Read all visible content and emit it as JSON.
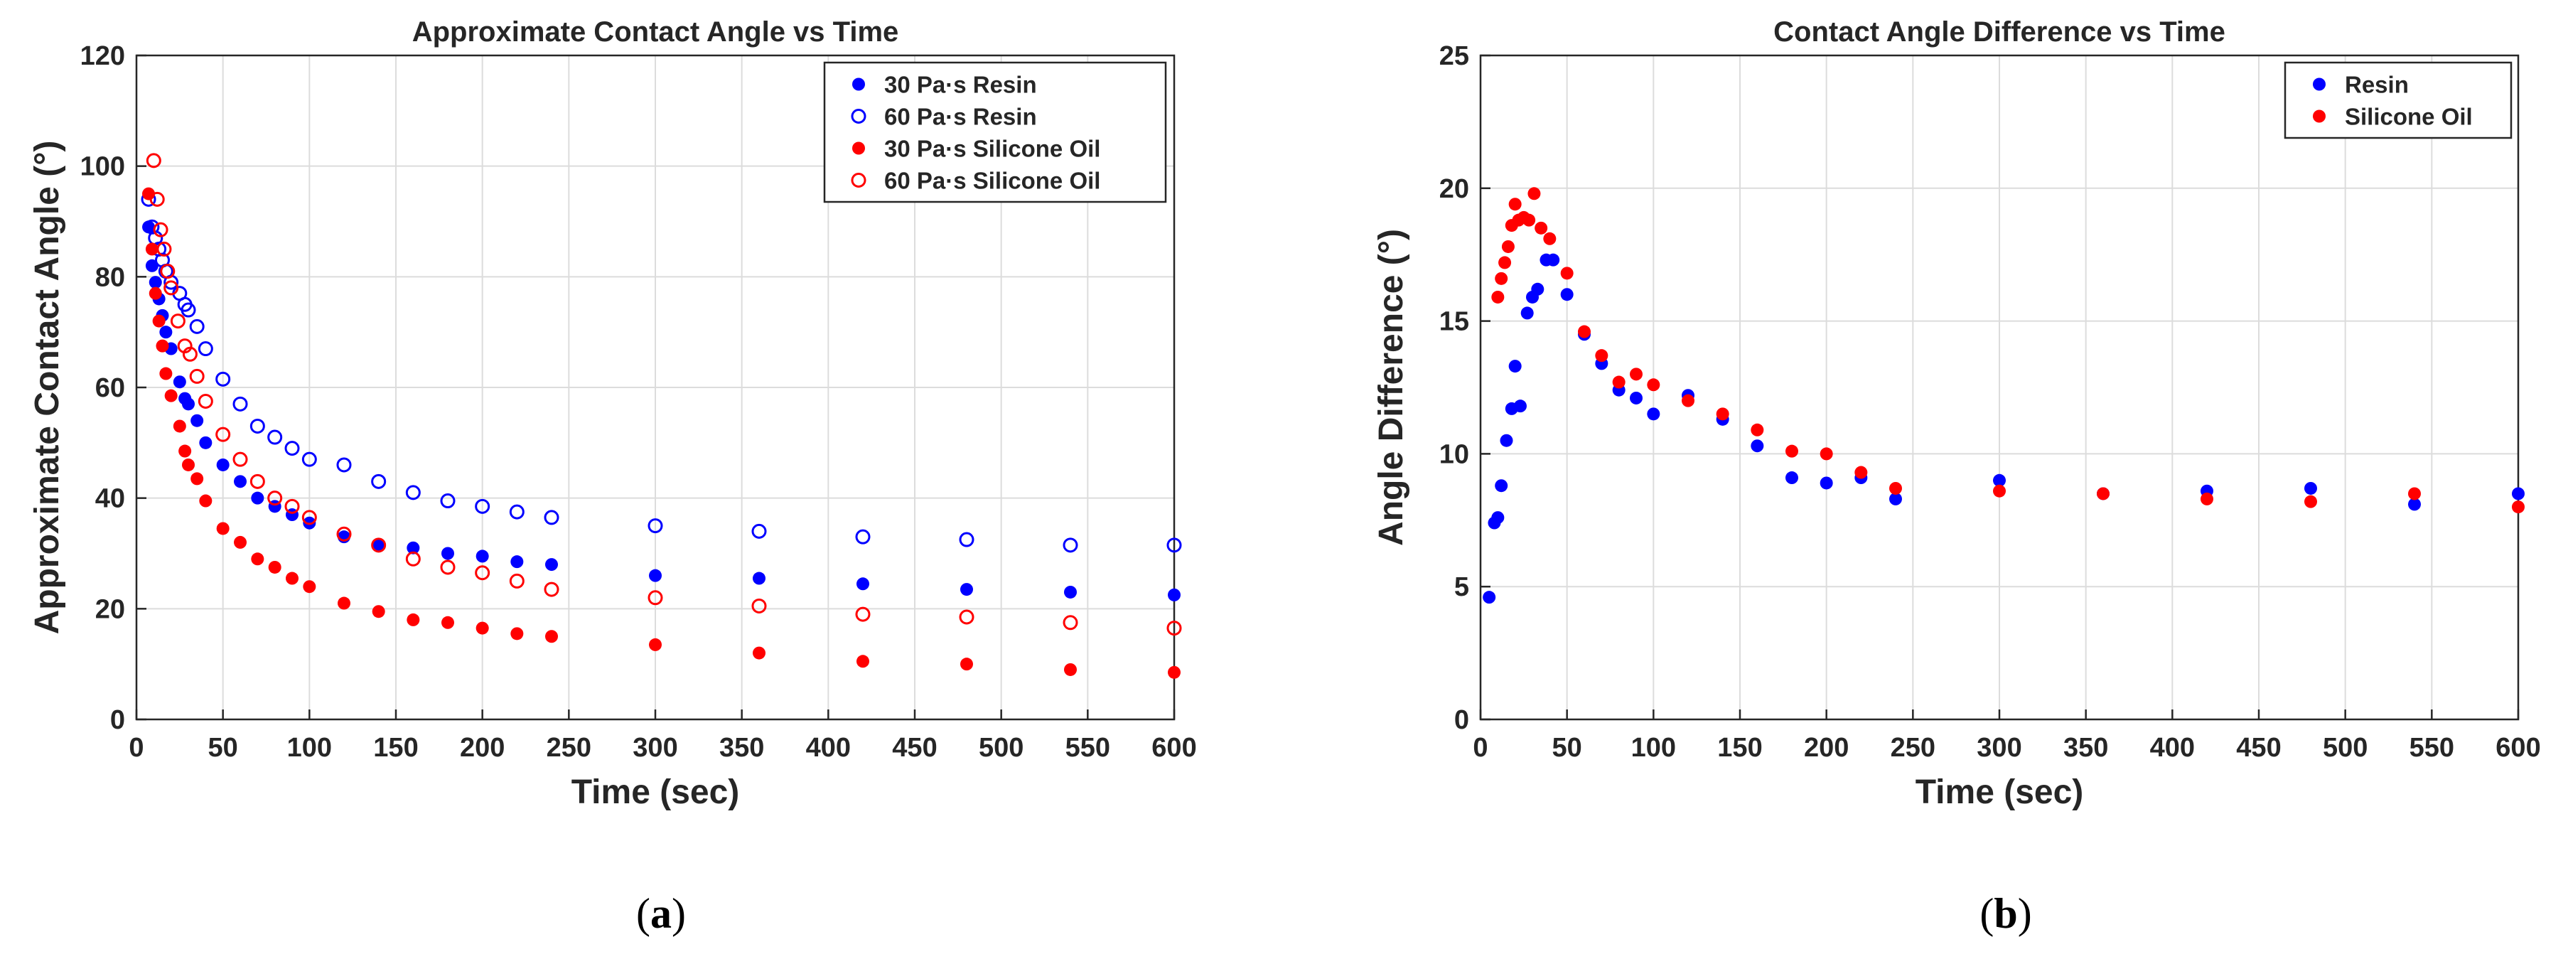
{
  "chart_data": [
    {
      "type": "scatter",
      "title": "Approximate Contact Angle vs Time",
      "xlabel": "Time (sec)",
      "ylabel": "Approximate Contact Angle (°)",
      "xlim": [
        0,
        600
      ],
      "ylim": [
        0,
        120
      ],
      "xticks": [
        "0",
        "50",
        "100",
        "150",
        "200",
        "250",
        "300",
        "350",
        "400",
        "450",
        "500",
        "550",
        "600"
      ],
      "yticks": [
        "0",
        "20",
        "40",
        "60",
        "80",
        "100",
        "120"
      ],
      "grid": true,
      "legend_position": "top-right",
      "series": [
        {
          "name": "30 Pa·s Resin",
          "color": "#0000ff",
          "marker": "filled",
          "x": [
            7,
            9,
            11,
            13,
            15,
            17,
            20,
            25,
            28,
            30,
            35,
            40,
            50,
            60,
            70,
            80,
            90,
            100,
            120,
            140,
            160,
            180,
            200,
            220,
            240,
            300,
            360,
            420,
            480,
            540,
            600
          ],
          "y": [
            89,
            82,
            79,
            76,
            73,
            70,
            67,
            61,
            58,
            57,
            54,
            50,
            46,
            43,
            40,
            38.5,
            37,
            35.5,
            33,
            31.5,
            31,
            30,
            29.5,
            28.5,
            28,
            26,
            25.5,
            24.5,
            23.5,
            23,
            22.5
          ]
        },
        {
          "name": "60 Pa·s Resin",
          "color": "#0000ff",
          "marker": "open",
          "x": [
            7,
            9,
            11,
            13,
            15,
            17,
            20,
            25,
            28,
            30,
            35,
            40,
            50,
            60,
            70,
            80,
            90,
            100,
            120,
            140,
            160,
            180,
            200,
            220,
            240,
            300,
            360,
            420,
            480,
            540,
            600
          ],
          "y": [
            94,
            89,
            87,
            85,
            83,
            81,
            79,
            77,
            75,
            74,
            71,
            67,
            61.5,
            57,
            53,
            51,
            49,
            47,
            46,
            43,
            41,
            39.5,
            38.5,
            37.5,
            36.5,
            35,
            34,
            33,
            32.5,
            31.5,
            31.5
          ]
        },
        {
          "name": "30 Pa·s Silicone Oil",
          "color": "#ff0000",
          "marker": "filled",
          "x": [
            7,
            9,
            11,
            13,
            15,
            17,
            20,
            25,
            28,
            30,
            35,
            40,
            50,
            60,
            70,
            80,
            90,
            100,
            120,
            140,
            160,
            180,
            200,
            220,
            240,
            300,
            360,
            420,
            480,
            540,
            600
          ],
          "y": [
            95,
            85,
            77,
            72,
            67.5,
            62.5,
            58.5,
            53,
            48.5,
            46,
            43.5,
            39.5,
            34.5,
            32,
            29,
            27.5,
            25.5,
            24,
            21,
            19.5,
            18,
            17.5,
            16.5,
            15.5,
            15,
            13.5,
            12,
            10.5,
            10,
            9,
            8.5
          ]
        },
        {
          "name": "60 Pa·s Silicone Oil",
          "color": "#ff0000",
          "marker": "open",
          "x": [
            10,
            12,
            14,
            16,
            18,
            20,
            24,
            28,
            31,
            35,
            40,
            50,
            60,
            70,
            80,
            90,
            100,
            120,
            140,
            160,
            180,
            200,
            220,
            240,
            300,
            360,
            420,
            480,
            540,
            600
          ],
          "y": [
            101,
            94,
            88.5,
            85,
            81,
            78,
            72,
            67.5,
            66,
            62,
            57.5,
            51.5,
            47,
            43,
            40,
            38.5,
            36.5,
            33.5,
            31.5,
            29,
            27.5,
            26.5,
            25,
            23.5,
            22,
            20.5,
            19,
            18.5,
            17.5,
            16.5
          ]
        }
      ]
    },
    {
      "type": "scatter",
      "title": "Contact Angle Difference vs Time",
      "xlabel": "Time (sec)",
      "ylabel": "Angle Difference (°)",
      "xlim": [
        0,
        600
      ],
      "ylim": [
        0,
        25
      ],
      "xticks": [
        "0",
        "50",
        "100",
        "150",
        "200",
        "250",
        "300",
        "350",
        "400",
        "450",
        "500",
        "550",
        "600"
      ],
      "yticks": [
        "0",
        "5",
        "10",
        "15",
        "20",
        "25"
      ],
      "grid": true,
      "legend_position": "top-right",
      "series": [
        {
          "name": "Resin",
          "color": "#0000ff",
          "marker": "filled",
          "x": [
            5,
            8,
            10,
            12,
            15,
            18,
            20,
            23,
            27,
            30,
            33,
            38,
            42,
            50,
            60,
            70,
            80,
            90,
            100,
            120,
            140,
            160,
            180,
            200,
            220,
            240,
            300,
            360,
            420,
            480,
            540,
            600
          ],
          "y": [
            4.6,
            7.4,
            7.6,
            8.8,
            10.5,
            11.7,
            13.3,
            11.8,
            15.3,
            15.9,
            16.2,
            17.3,
            17.3,
            16,
            14.5,
            13.4,
            12.4,
            12.1,
            11.5,
            12.2,
            11.3,
            10.3,
            9.1,
            8.9,
            9.1,
            8.3,
            9,
            8.5,
            8.6,
            8.7,
            8.1,
            8.5
          ]
        },
        {
          "name": "Silicone Oil",
          "color": "#ff0000",
          "marker": "filled",
          "x": [
            10,
            12,
            14,
            16,
            18,
            20,
            22,
            25,
            28,
            31,
            35,
            40,
            50,
            60,
            70,
            80,
            90,
            100,
            120,
            140,
            160,
            180,
            200,
            220,
            240,
            300,
            360,
            420,
            480,
            540,
            600
          ],
          "y": [
            15.9,
            16.6,
            17.2,
            17.8,
            18.6,
            19.4,
            18.8,
            18.9,
            18.8,
            19.8,
            18.5,
            18.1,
            16.8,
            14.6,
            13.7,
            12.7,
            13,
            12.6,
            12,
            11.5,
            10.9,
            10.1,
            10,
            9.3,
            8.7,
            8.6,
            8.5,
            8.3,
            8.2,
            8.5,
            8
          ]
        }
      ]
    }
  ],
  "captions": {
    "a": {
      "open": "(",
      "letter": "a",
      "close": ")"
    },
    "b": {
      "open": "(",
      "letter": "b",
      "close": ")"
    }
  }
}
